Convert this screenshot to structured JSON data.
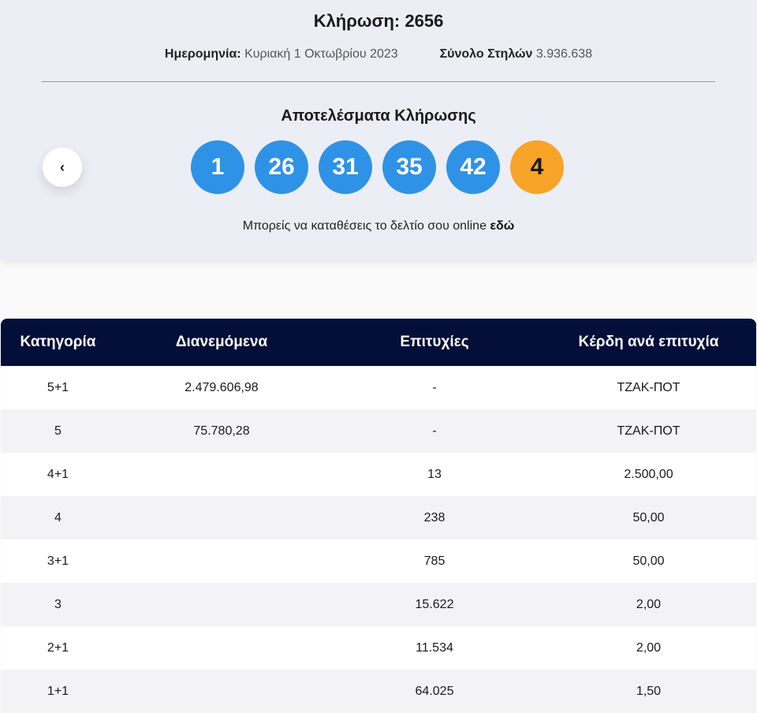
{
  "draw": {
    "title": "Κλήρωση: 2656",
    "date_label": "Ημερομηνία:",
    "date_value": "Κυριακή 1 Οκτωβρίου 2023",
    "columns_label": "Σύνολο Στηλών",
    "columns_value": "3.936.638"
  },
  "results": {
    "title": "Αποτελέσματα Κλήρωσης",
    "numbers": [
      "1",
      "26",
      "31",
      "35",
      "42"
    ],
    "bonus": "4",
    "prev_icon": "chevron-left",
    "ball_color": "#2e93e6",
    "bonus_color": "#f7a428"
  },
  "online": {
    "text": "Μπορείς να καταθέσεις το δελτίο σου online ",
    "link": "εδώ"
  },
  "table": {
    "headers": [
      "Κατηγορία",
      "Διανεμόμενα",
      "Επιτυχίες",
      "Κέρδη ανά επιτυχία"
    ],
    "rows": [
      [
        "5+1",
        "2.479.606,98",
        "-",
        "ΤΖΑΚ-ΠΟΤ"
      ],
      [
        "5",
        "75.780,28",
        "-",
        "ΤΖΑΚ-ΠΟΤ"
      ],
      [
        "4+1",
        "",
        "13",
        "2.500,00"
      ],
      [
        "4",
        "",
        "238",
        "50,00"
      ],
      [
        "3+1",
        "",
        "785",
        "50,00"
      ],
      [
        "3",
        "",
        "15.622",
        "2,00"
      ],
      [
        "2+1",
        "",
        "11.534",
        "2,00"
      ],
      [
        "1+1",
        "",
        "64.025",
        "1,50"
      ]
    ]
  }
}
